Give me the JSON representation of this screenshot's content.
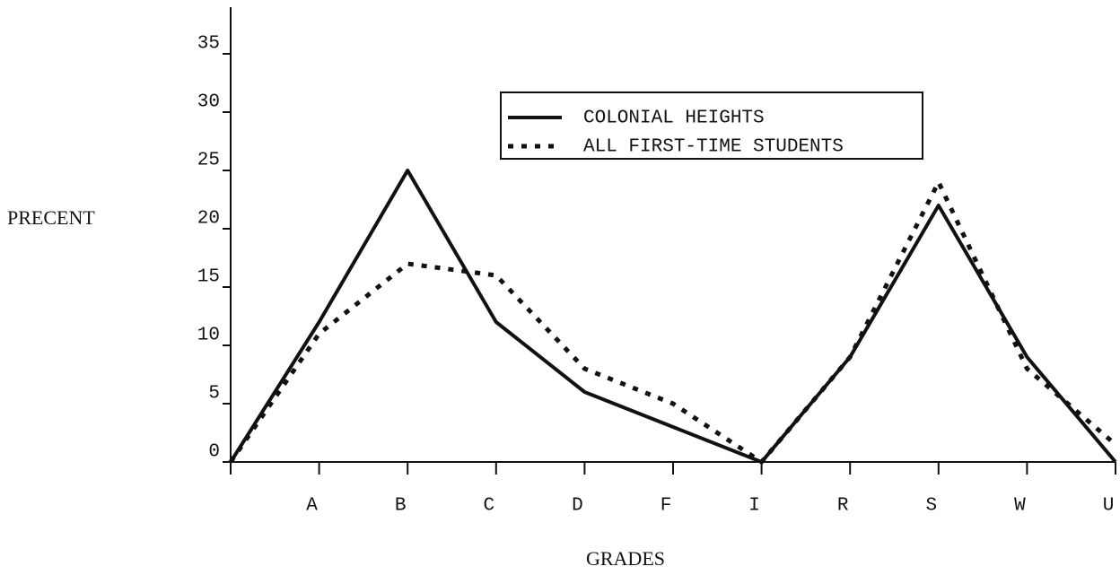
{
  "chart_data": {
    "type": "line",
    "x_label": "GRADES",
    "y_label": "PRECENT",
    "categories": [
      null,
      "A",
      "B",
      "C",
      "D",
      "F",
      "I",
      "R",
      "S",
      "W",
      "U"
    ],
    "series": [
      {
        "name": "COLONIAL HEIGHTS",
        "color": "#111111",
        "style": "solid",
        "values": [
          0,
          12,
          25,
          12,
          6,
          3,
          0,
          9,
          22,
          9,
          0
        ]
      },
      {
        "name": "ALL FIRST-TIME STUDENTS",
        "color": "#111111",
        "style": "dotted",
        "values": [
          0,
          11,
          17,
          16,
          8,
          5,
          0,
          9,
          24,
          8,
          1.5
        ]
      }
    ],
    "ylim": [
      0,
      39
    ],
    "yticks": [
      0,
      5,
      10,
      15,
      20,
      25,
      30,
      35
    ],
    "grid": false
  }
}
